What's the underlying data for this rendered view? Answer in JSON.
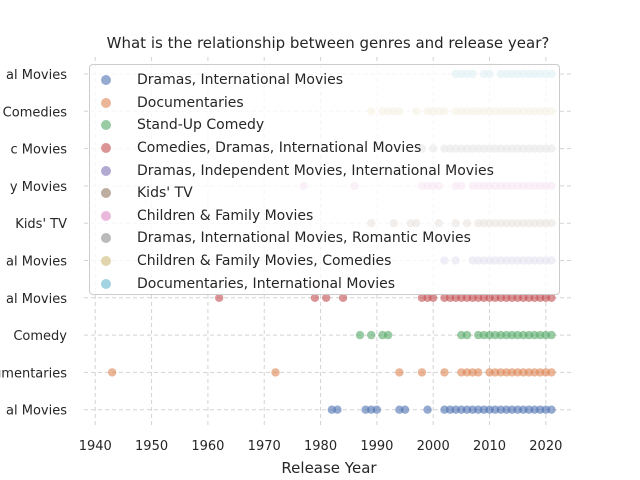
{
  "chart_data": {
    "type": "scatter",
    "title": "What is the relationship between genres and release year?",
    "xlabel": "Release Year",
    "ylabel": "",
    "xlim": [
      1938,
      2025
    ],
    "xticks": [
      "1940",
      "1950",
      "1960",
      "1970",
      "1980",
      "1990",
      "2000",
      "2010",
      "2020"
    ],
    "grid": true,
    "legend_position": "top-left",
    "categories": [
      {
        "label": "Dramas, International Movies",
        "tick": "al Movies"
      },
      {
        "label": "Documentaries",
        "tick": "umentaries"
      },
      {
        "label": "Stand-Up Comedy",
        "tick": "Comedy"
      },
      {
        "label": "Comedies, Dramas, International Movies",
        "tick": "al Movies"
      },
      {
        "label": "Dramas, Independent Movies, International Movies",
        "tick": "al Movies"
      },
      {
        "label": "Kids' TV",
        "tick": "Kids' TV"
      },
      {
        "label": "Children & Family Movies",
        "tick": "y Movies"
      },
      {
        "label": "Dramas, International Movies, Romantic Movies",
        "tick": "c Movies"
      },
      {
        "label": "Children & Family Movies, Comedies",
        "tick": "Comedies"
      },
      {
        "label": "Documentaries, International Movies",
        "tick": "al Movies"
      }
    ],
    "series": [
      {
        "name": "Dramas, International Movies",
        "color": "#4c72b0",
        "x": [
          1982,
          1983,
          1988,
          1989,
          1990,
          1994,
          1995,
          1999,
          2002,
          2003,
          2004,
          2005,
          2006,
          2007,
          2008,
          2009,
          2010,
          2011,
          2012,
          2013,
          2014,
          2015,
          2016,
          2017,
          2018,
          2019,
          2020,
          2021
        ]
      },
      {
        "name": "Documentaries",
        "color": "#dd8452",
        "x": [
          1943,
          1972,
          1994,
          1998,
          2002,
          2005,
          2006,
          2007,
          2008,
          2010,
          2011,
          2012,
          2013,
          2014,
          2015,
          2016,
          2017,
          2018,
          2019,
          2020,
          2021
        ]
      },
      {
        "name": "Stand-Up Comedy",
        "color": "#55a868",
        "x": [
          1987,
          1989,
          1991,
          1992,
          2005,
          2006,
          2008,
          2009,
          2010,
          2011,
          2012,
          2013,
          2014,
          2015,
          2016,
          2017,
          2018,
          2019,
          2020,
          2021
        ]
      },
      {
        "name": "Comedies, Dramas, International Movies",
        "color": "#c44e52",
        "x": [
          1962,
          1979,
          1981,
          1984,
          1998,
          1999,
          2000,
          2002,
          2003,
          2004,
          2005,
          2006,
          2007,
          2008,
          2009,
          2010,
          2011,
          2012,
          2013,
          2014,
          2015,
          2016,
          2017,
          2018,
          2019,
          2020,
          2021
        ]
      },
      {
        "name": "Dramas, Independent Movies, International Movies",
        "color": "#8172b3",
        "x": [
          2002,
          2004,
          2007,
          2008,
          2009,
          2010,
          2011,
          2012,
          2013,
          2014,
          2015,
          2016,
          2017,
          2018,
          2019,
          2020,
          2021
        ]
      },
      {
        "name": "Kids' TV",
        "color": "#937860",
        "x": [
          1989,
          1993,
          1996,
          1997,
          2001,
          2004,
          2006,
          2008,
          2009,
          2010,
          2011,
          2012,
          2013,
          2014,
          2015,
          2016,
          2017,
          2018,
          2019,
          2020,
          2021
        ]
      },
      {
        "name": "Children & Family Movies",
        "color": "#da8bc3",
        "x": [
          1977,
          1986,
          1998,
          1999,
          2000,
          2001,
          2004,
          2005,
          2007,
          2008,
          2009,
          2010,
          2011,
          2012,
          2013,
          2014,
          2015,
          2016,
          2017,
          2018,
          2019,
          2020,
          2021
        ]
      },
      {
        "name": "Dramas, International Movies, Romantic Movies",
        "color": "#8c8c8c",
        "x": [
          1998,
          2000,
          2002,
          2003,
          2004,
          2005,
          2006,
          2007,
          2008,
          2009,
          2010,
          2011,
          2012,
          2013,
          2014,
          2015,
          2016,
          2017,
          2018,
          2019,
          2020,
          2021
        ]
      },
      {
        "name": "Children & Family Movies, Comedies",
        "color": "#ccb974",
        "x": [
          1989,
          1991,
          1992,
          1993,
          1994,
          1997,
          1999,
          2000,
          2001,
          2002,
          2004,
          2005,
          2006,
          2007,
          2008,
          2009,
          2010,
          2011,
          2012,
          2013,
          2014,
          2015,
          2016,
          2017,
          2018,
          2019,
          2020,
          2021
        ]
      },
      {
        "name": "Documentaries, International Movies",
        "color": "#64b5cd",
        "x": [
          2004,
          2005,
          2006,
          2007,
          2009,
          2010,
          2012,
          2013,
          2014,
          2015,
          2016,
          2017,
          2018,
          2019,
          2020,
          2021
        ]
      }
    ]
  }
}
